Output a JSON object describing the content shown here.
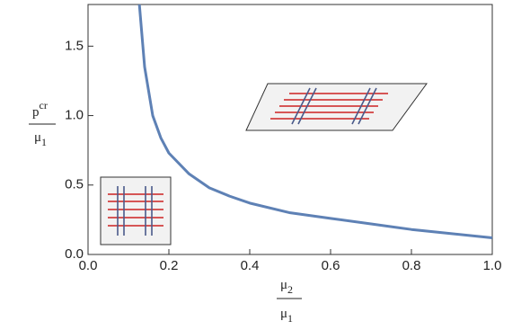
{
  "chart_data": {
    "type": "line",
    "x_label": {
      "numerator": "μ",
      "numerator_sub": "2",
      "denominator": "μ",
      "denominator_sub": "1"
    },
    "y_label": {
      "numerator": "p",
      "numerator_sup": "cr",
      "denominator": "μ",
      "denominator_sub": "1"
    },
    "x": [
      0.127,
      0.14,
      0.16,
      0.18,
      0.2,
      0.25,
      0.3,
      0.35,
      0.4,
      0.5,
      0.6,
      0.7,
      0.8,
      0.9,
      1.0
    ],
    "series": [
      {
        "color": "#5e81b5",
        "values": [
          1.8,
          1.35,
          1.0,
          0.84,
          0.73,
          0.58,
          0.48,
          0.42,
          0.37,
          0.3,
          0.26,
          0.22,
          0.18,
          0.15,
          0.12
        ]
      }
    ],
    "xlim": [
      0,
      1
    ],
    "ylim": [
      0,
      1.8
    ],
    "xticks": [
      {
        "value": 0,
        "label": "0.0"
      },
      0.2,
      0.4,
      0.6,
      0.8,
      {
        "value": 1,
        "label": "1.0"
      }
    ],
    "yticks": [
      {
        "value": 0,
        "label": "0.0"
      },
      0.5,
      {
        "value": 1,
        "label": "1.0"
      },
      1.5
    ],
    "grid": false
  }
}
